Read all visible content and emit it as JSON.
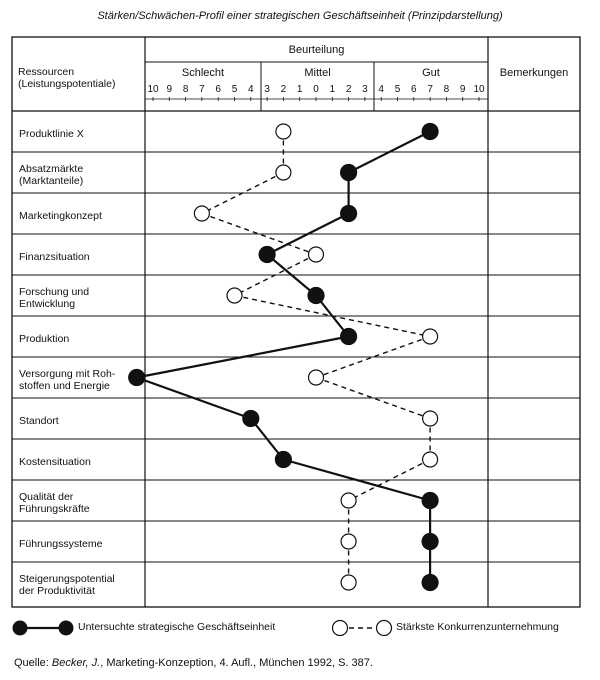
{
  "title": "Stärken/Schwächen-Profil einer strategischen Geschäftseinheit (Prinzipdarstellung)",
  "header": {
    "resources_label": "Ressourcen\n(Leistungspotentiale)",
    "rating_label": "Beurteilung",
    "bad_label": "Schlecht",
    "medium_label": "Mittel",
    "good_label": "Gut",
    "remarks_label": "Bemerkungen"
  },
  "scale_ticks": [
    "10",
    "9",
    "8",
    "7",
    "6",
    "5",
    "4",
    "3",
    "2",
    "1",
    "0",
    "1",
    "2",
    "3",
    "4",
    "5",
    "6",
    "7",
    "8",
    "9",
    "10"
  ],
  "rows": [
    {
      "label": "Produktlinie X"
    },
    {
      "label": "Absatzmärkte\n(Marktanteile)"
    },
    {
      "label": "Marketingkonzept"
    },
    {
      "label": "Finanzsituation"
    },
    {
      "label": "Forschung und\nEntwicklung"
    },
    {
      "label": "Produktion"
    },
    {
      "label": "Versorgung mit Roh-\nstoffen und Energie"
    },
    {
      "label": "Standort"
    },
    {
      "label": "Kostensituation"
    },
    {
      "label": "Qualität der\nFührungskräfte"
    },
    {
      "label": "Führungssysteme"
    },
    {
      "label": "Steigerungspotential\nder Produktivität"
    }
  ],
  "chart_data": {
    "type": "line",
    "series": [
      {
        "name": "Untersuchte strategische Geschäftseinheit",
        "style": "solid-filled",
        "values": [
          7,
          2,
          2,
          -3,
          0,
          2,
          -11,
          -4,
          -2,
          7,
          7,
          7
        ]
      },
      {
        "name": "Stärkste Konkurrenzunternehmung",
        "style": "dashed-open",
        "values": [
          -2,
          -2,
          -7,
          0,
          -5,
          7,
          0,
          7,
          7,
          2,
          2,
          2
        ]
      }
    ]
  },
  "legend": {
    "own_label": "Untersuchte strategische Geschäftseinheit",
    "competitor_label": "Stärkste Konkurrenzunternehmung"
  },
  "source": {
    "prefix": "Quelle: ",
    "author": "Becker, J.",
    "rest": ", Marketing-Konzeption, 4. Aufl., München 1992, S. 387."
  }
}
